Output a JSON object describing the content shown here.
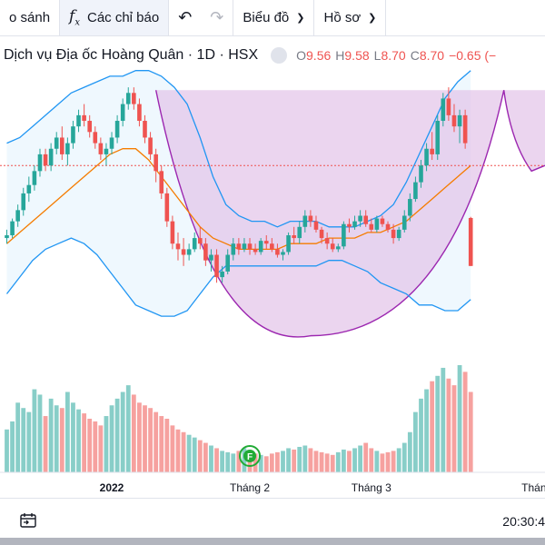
{
  "toolbar": {
    "compare_label": "o sánh",
    "indicators_label": "Các chỉ báo",
    "chart_type_label": "Biểu đồ",
    "profile_label": "Hồ sơ"
  },
  "legend": {
    "title": "Dịch vụ Địa ốc Hoàng Quân · 1D · HSX",
    "o_label": "O",
    "o_value": "9.56",
    "h_label": "H",
    "h_value": "9.58",
    "l_label": "L",
    "l_value": "8.70",
    "c_label": "C",
    "c_value": "8.70",
    "change": "−0.65 (−"
  },
  "footer": {
    "time": "20:30:4"
  },
  "colors": {
    "up": "#26a69a",
    "down": "#ef5350",
    "bb": "#2196f3",
    "ma": "#f57c00",
    "pattern_fill": "#e1bee7",
    "pattern_line": "#9c27b0"
  },
  "icons": {
    "fx": "fx-icon",
    "undo": "undo-arrow-icon",
    "redo": "redo-arrow-icon",
    "calendar": "calendar-icon"
  },
  "chart_data": {
    "type": "candlestick",
    "symbol": "Dịch vụ Địa ốc Hoàng Quân",
    "interval": "1D",
    "exchange": "HSX",
    "x_labels": [
      {
        "index": 19,
        "label": "2022"
      },
      {
        "index": 44,
        "label": "Tháng 2"
      },
      {
        "index": 66,
        "label": "Tháng 3"
      },
      {
        "index": 96,
        "label": "Tháng"
      }
    ],
    "price_range": [
      7.2,
      12.0
    ],
    "current_price_line": 10.5,
    "candles": [
      [
        9.2,
        9.35,
        9.1,
        9.25
      ],
      [
        9.25,
        9.55,
        9.2,
        9.5
      ],
      [
        9.5,
        9.8,
        9.4,
        9.7
      ],
      [
        9.7,
        10.1,
        9.6,
        10.0
      ],
      [
        10.0,
        10.3,
        9.85,
        10.15
      ],
      [
        10.15,
        10.5,
        10.05,
        10.4
      ],
      [
        10.4,
        10.8,
        10.3,
        10.7
      ],
      [
        10.7,
        10.8,
        10.4,
        10.5
      ],
      [
        10.5,
        10.9,
        10.4,
        10.8
      ],
      [
        10.8,
        11.1,
        10.7,
        11.0
      ],
      [
        11.0,
        11.2,
        10.6,
        10.7
      ],
      [
        10.7,
        11.0,
        10.5,
        10.9
      ],
      [
        10.9,
        11.3,
        10.8,
        11.2
      ],
      [
        11.2,
        11.5,
        11.1,
        11.4
      ],
      [
        11.4,
        11.6,
        11.2,
        11.3
      ],
      [
        11.3,
        11.4,
        11.0,
        11.1
      ],
      [
        11.1,
        11.2,
        10.8,
        10.9
      ],
      [
        10.9,
        11.0,
        10.6,
        10.7
      ],
      [
        10.7,
        10.9,
        10.5,
        10.8
      ],
      [
        10.8,
        11.1,
        10.7,
        11.0
      ],
      [
        11.0,
        11.4,
        10.9,
        11.3
      ],
      [
        11.3,
        11.7,
        11.2,
        11.6
      ],
      [
        11.6,
        11.9,
        11.5,
        11.8
      ],
      [
        11.8,
        11.9,
        11.5,
        11.6
      ],
      [
        11.6,
        11.7,
        11.2,
        11.3
      ],
      [
        11.3,
        11.4,
        10.9,
        11.0
      ],
      [
        11.0,
        11.1,
        10.6,
        10.7
      ],
      [
        10.7,
        10.8,
        10.2,
        10.4
      ],
      [
        10.4,
        10.5,
        9.9,
        10.0
      ],
      [
        10.0,
        10.1,
        9.4,
        9.5
      ],
      [
        9.5,
        9.6,
        9.0,
        9.1
      ],
      [
        9.1,
        9.3,
        8.8,
        9.0
      ],
      [
        9.0,
        9.2,
        8.7,
        8.9
      ],
      [
        8.9,
        9.1,
        8.8,
        9.0
      ],
      [
        9.0,
        9.3,
        8.95,
        9.2
      ],
      [
        9.2,
        9.4,
        9.0,
        9.1
      ],
      [
        9.1,
        9.2,
        8.7,
        8.8
      ],
      [
        8.8,
        9.0,
        8.6,
        8.9
      ],
      [
        8.9,
        9.0,
        8.4,
        8.5
      ],
      [
        8.5,
        8.7,
        8.4,
        8.6
      ],
      [
        8.6,
        9.0,
        8.55,
        8.9
      ],
      [
        8.9,
        9.2,
        8.8,
        9.1
      ],
      [
        9.1,
        9.2,
        8.9,
        9.0
      ],
      [
        9.0,
        9.2,
        8.95,
        9.1
      ],
      [
        9.1,
        9.2,
        8.9,
        9.0
      ],
      [
        9.0,
        9.1,
        8.9,
        8.95
      ],
      [
        8.95,
        9.2,
        8.9,
        9.15
      ],
      [
        9.15,
        9.25,
        9.0,
        9.1
      ],
      [
        9.1,
        9.2,
        8.95,
        9.0
      ],
      [
        9.0,
        9.1,
        8.85,
        8.9
      ],
      [
        8.9,
        9.0,
        8.8,
        8.95
      ],
      [
        8.95,
        9.3,
        8.9,
        9.25
      ],
      [
        9.25,
        9.4,
        9.1,
        9.2
      ],
      [
        9.2,
        9.5,
        9.1,
        9.4
      ],
      [
        9.4,
        9.7,
        9.3,
        9.6
      ],
      [
        9.6,
        9.7,
        9.4,
        9.5
      ],
      [
        9.5,
        9.6,
        9.3,
        9.35
      ],
      [
        9.35,
        9.4,
        9.1,
        9.2
      ],
      [
        9.2,
        9.3,
        9.0,
        9.1
      ],
      [
        9.1,
        9.2,
        8.95,
        9.0
      ],
      [
        9.0,
        9.1,
        8.95,
        9.05
      ],
      [
        9.05,
        9.5,
        9.0,
        9.45
      ],
      [
        9.45,
        9.55,
        9.3,
        9.4
      ],
      [
        9.4,
        9.6,
        9.35,
        9.5
      ],
      [
        9.5,
        9.7,
        9.4,
        9.6
      ],
      [
        9.6,
        9.7,
        9.4,
        9.45
      ],
      [
        9.45,
        9.55,
        9.3,
        9.35
      ],
      [
        9.35,
        9.6,
        9.3,
        9.55
      ],
      [
        9.55,
        9.6,
        9.4,
        9.45
      ],
      [
        9.45,
        9.5,
        9.3,
        9.35
      ],
      [
        9.35,
        9.45,
        9.1,
        9.2
      ],
      [
        9.2,
        9.4,
        9.15,
        9.35
      ],
      [
        9.35,
        9.7,
        9.3,
        9.6
      ],
      [
        9.6,
        10.0,
        9.5,
        9.9
      ],
      [
        9.9,
        10.3,
        9.85,
        10.2
      ],
      [
        10.2,
        10.6,
        10.1,
        10.5
      ],
      [
        10.5,
        10.9,
        10.4,
        10.8
      ],
      [
        10.8,
        11.1,
        10.6,
        10.7
      ],
      [
        10.7,
        11.4,
        10.6,
        11.3
      ],
      [
        11.3,
        11.8,
        11.2,
        11.7
      ],
      [
        11.7,
        11.9,
        11.3,
        11.4
      ],
      [
        11.4,
        11.6,
        11.1,
        11.2
      ],
      [
        11.2,
        11.5,
        10.9,
        11.4
      ],
      [
        11.4,
        11.5,
        10.8,
        10.9
      ],
      [
        9.56,
        9.58,
        8.7,
        8.7
      ]
    ],
    "volumes": [
      32,
      38,
      52,
      48,
      45,
      62,
      58,
      42,
      55,
      50,
      48,
      60,
      52,
      47,
      44,
      40,
      38,
      35,
      42,
      50,
      55,
      60,
      65,
      58,
      52,
      50,
      48,
      45,
      42,
      40,
      35,
      32,
      30,
      28,
      26,
      24,
      22,
      20,
      18,
      16,
      15,
      14,
      16,
      18,
      15,
      14,
      13,
      12,
      14,
      15,
      16,
      18,
      17,
      19,
      20,
      18,
      16,
      15,
      14,
      13,
      15,
      17,
      16,
      18,
      20,
      22,
      18,
      16,
      14,
      15,
      16,
      18,
      22,
      30,
      45,
      55,
      62,
      68,
      72,
      78,
      70,
      65,
      80,
      75,
      60
    ],
    "bollinger": {
      "upper": [
        10.9,
        11.0,
        11.2,
        11.4,
        11.6,
        11.8,
        11.9,
        12.0,
        12.1,
        12.1,
        12.2,
        12.2,
        12.1,
        11.9,
        11.6,
        11.0,
        10.3,
        9.8,
        9.6,
        9.5,
        9.5,
        9.4,
        9.5,
        9.5,
        9.5,
        9.4,
        9.4,
        9.4,
        9.5,
        9.6,
        9.8,
        10.2,
        10.7,
        11.2,
        11.7,
        12.0,
        12.2
      ],
      "middle": [
        9.1,
        9.3,
        9.5,
        9.7,
        9.9,
        10.1,
        10.3,
        10.5,
        10.7,
        10.8,
        10.8,
        10.6,
        10.3,
        10.0,
        9.7,
        9.4,
        9.2,
        9.1,
        9.0,
        9.0,
        9.0,
        9.0,
        9.1,
        9.1,
        9.1,
        9.2,
        9.2,
        9.2,
        9.3,
        9.3,
        9.4,
        9.5,
        9.7,
        9.9,
        10.1,
        10.3,
        10.5
      ],
      "lower": [
        8.2,
        8.5,
        8.8,
        9.0,
        9.1,
        9.2,
        9.1,
        8.9,
        8.6,
        8.3,
        8.0,
        7.9,
        7.8,
        7.8,
        7.9,
        8.2,
        8.5,
        8.7,
        8.7,
        8.7,
        8.7,
        8.7,
        8.7,
        8.7,
        8.7,
        8.8,
        8.8,
        8.7,
        8.6,
        8.4,
        8.3,
        8.2,
        8.0,
        8.0,
        7.9,
        7.9,
        8.1
      ]
    },
    "signal_marker": {
      "index": 44,
      "label": "F"
    },
    "pattern": {
      "name": "cup and handle",
      "left_rim": 11.85,
      "bottom": 7.45,
      "right_rim": 11.85
    }
  }
}
